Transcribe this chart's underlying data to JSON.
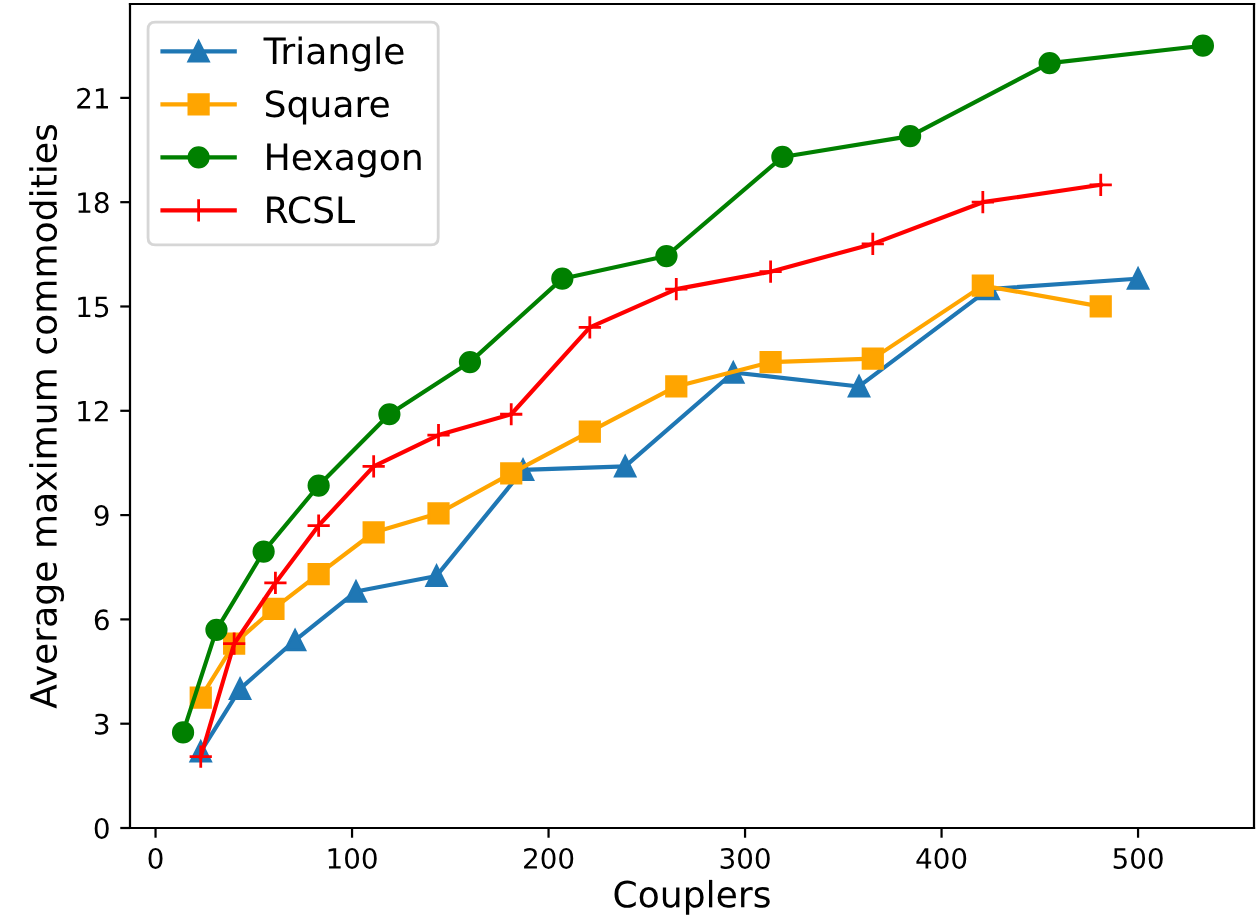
{
  "chart_data": {
    "type": "line",
    "xlabel": "Couplers",
    "ylabel": "Average maximum commodities",
    "xlim": [
      -13,
      559
    ],
    "xticks": [
      0,
      100,
      200,
      300,
      400,
      500
    ],
    "ylim": [
      0,
      23.7
    ],
    "yticks": [
      0,
      3,
      6,
      9,
      12,
      15,
      18,
      21
    ],
    "grid": false,
    "legend": "top left",
    "series": [
      {
        "name": "Triangle",
        "color": "#1f77b4",
        "marker": "triangle",
        "x": [
          23,
          43,
          71,
          102,
          143,
          187,
          239,
          294,
          358,
          424,
          500
        ],
        "values": [
          2.2,
          4.0,
          5.4,
          6.8,
          7.25,
          10.3,
          10.4,
          13.1,
          12.7,
          15.5,
          15.8
        ]
      },
      {
        "name": "Square",
        "color": "#ffa500",
        "marker": "square",
        "x": [
          23,
          40,
          60,
          83,
          111,
          144,
          181,
          221,
          265,
          313,
          365,
          421,
          481
        ],
        "values": [
          3.75,
          5.3,
          6.3,
          7.3,
          8.5,
          9.05,
          10.2,
          11.4,
          12.7,
          13.4,
          13.5,
          15.6,
          15.0
        ]
      },
      {
        "name": "Hexagon",
        "color": "#008000",
        "marker": "circle",
        "x": [
          14,
          31,
          55,
          83,
          119,
          160,
          207,
          260,
          319,
          384,
          455,
          533
        ],
        "values": [
          2.75,
          5.7,
          7.95,
          9.85,
          11.9,
          13.4,
          15.8,
          16.45,
          19.3,
          19.9,
          22.0,
          22.5
        ]
      },
      {
        "name": "RCSL",
        "color": "#ff0000",
        "marker": "cross",
        "x": [
          23,
          40,
          61,
          83,
          111,
          144,
          181,
          221,
          265,
          313,
          365,
          421,
          481
        ],
        "values": [
          2.05,
          5.3,
          7.05,
          8.7,
          10.4,
          11.3,
          11.9,
          14.4,
          15.5,
          16.0,
          16.8,
          18.0,
          18.5
        ]
      }
    ]
  }
}
